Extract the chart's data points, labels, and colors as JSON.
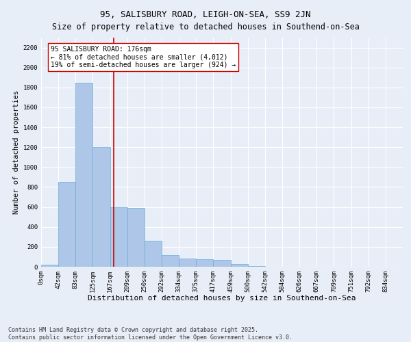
{
  "title": "95, SALISBURY ROAD, LEIGH-ON-SEA, SS9 2JN",
  "subtitle": "Size of property relative to detached houses in Southend-on-Sea",
  "xlabel": "Distribution of detached houses by size in Southend-on-Sea",
  "ylabel": "Number of detached properties",
  "bar_labels": [
    "0sqm",
    "42sqm",
    "83sqm",
    "125sqm",
    "167sqm",
    "209sqm",
    "250sqm",
    "292sqm",
    "334sqm",
    "375sqm",
    "417sqm",
    "459sqm",
    "500sqm",
    "542sqm",
    "584sqm",
    "626sqm",
    "667sqm",
    "709sqm",
    "751sqm",
    "792sqm",
    "834sqm"
  ],
  "bar_values": [
    20,
    850,
    1850,
    1200,
    600,
    590,
    260,
    120,
    80,
    75,
    70,
    30,
    5,
    0,
    0,
    0,
    0,
    0,
    0,
    0,
    0
  ],
  "bar_color": "#aec6e8",
  "bar_edge_color": "#6aaed6",
  "vline_x": 4.21,
  "vline_color": "#cc0000",
  "annotation_text": "95 SALISBURY ROAD: 176sqm\n← 81% of detached houses are smaller (4,012)\n19% of semi-detached houses are larger (924) →",
  "annotation_box_color": "#ffffff",
  "annotation_box_edge": "#cc0000",
  "ylim": [
    0,
    2300
  ],
  "yticks": [
    0,
    200,
    400,
    600,
    800,
    1000,
    1200,
    1400,
    1600,
    1800,
    2000,
    2200
  ],
  "bg_color": "#e8eef7",
  "grid_color": "#ffffff",
  "footer": "Contains HM Land Registry data © Crown copyright and database right 2025.\nContains public sector information licensed under the Open Government Licence v3.0.",
  "title_fontsize": 9,
  "subtitle_fontsize": 8.5,
  "xlabel_fontsize": 8,
  "ylabel_fontsize": 7.5,
  "tick_fontsize": 6.5,
  "annotation_fontsize": 7,
  "footer_fontsize": 6
}
